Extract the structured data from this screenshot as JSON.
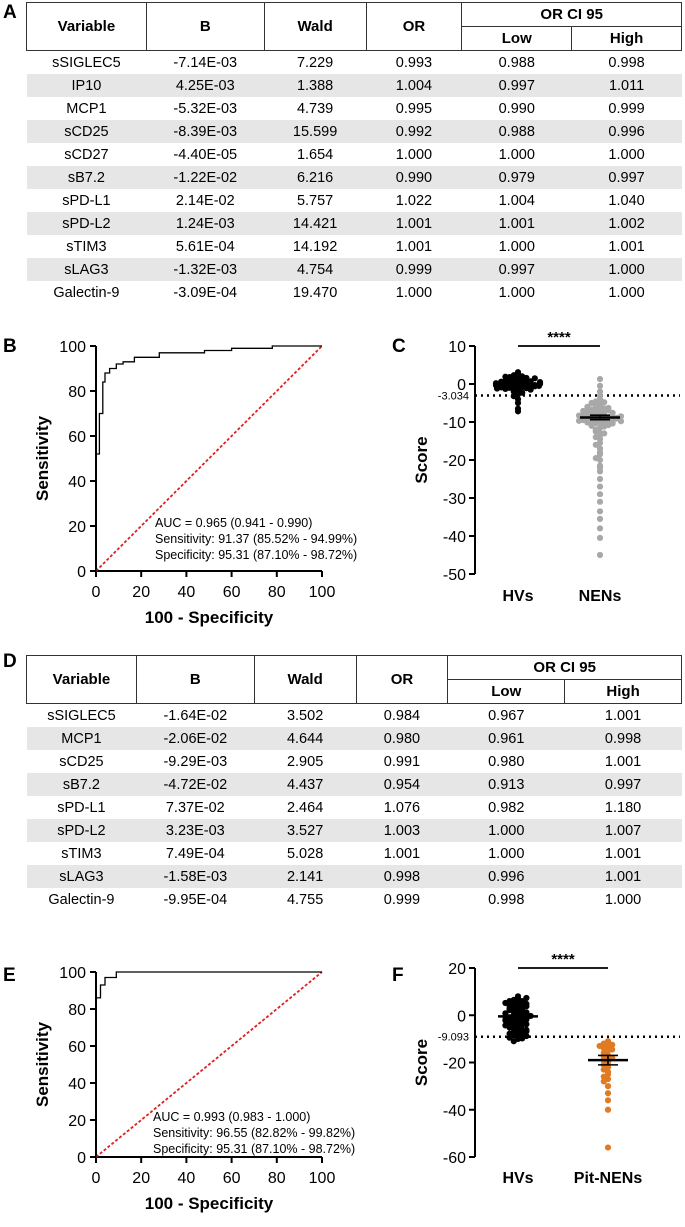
{
  "panels": {
    "a": "A",
    "b": "B",
    "c": "C",
    "d": "D",
    "e": "E",
    "f": "F"
  },
  "table_a": {
    "headers": {
      "variable": "Variable",
      "b": "B",
      "wald": "Wald",
      "or": "OR",
      "ci": "OR CI 95",
      "low": "Low",
      "high": "High"
    },
    "rows": [
      [
        "sSIGLEC5",
        "-7.14E-03",
        "7.229",
        "0.993",
        "0.988",
        "0.998"
      ],
      [
        "IP10",
        "4.25E-03",
        "1.388",
        "1.004",
        "0.997",
        "1.011"
      ],
      [
        "MCP1",
        "-5.32E-03",
        "4.739",
        "0.995",
        "0.990",
        "0.999"
      ],
      [
        "sCD25",
        "-8.39E-03",
        "15.599",
        "0.992",
        "0.988",
        "0.996"
      ],
      [
        "sCD27",
        "-4.40E-05",
        "1.654",
        "1.000",
        "1.000",
        "1.000"
      ],
      [
        "sB7.2",
        "-1.22E-02",
        "6.216",
        "0.990",
        "0.979",
        "0.997"
      ],
      [
        "sPD-L1",
        "2.14E-02",
        "5.757",
        "1.022",
        "1.004",
        "1.040"
      ],
      [
        "sPD-L2",
        "1.24E-03",
        "14.421",
        "1.001",
        "1.001",
        "1.002"
      ],
      [
        "sTIM3",
        "5.61E-04",
        "14.192",
        "1.001",
        "1.000",
        "1.001"
      ],
      [
        "sLAG3",
        "-1.32E-03",
        "4.754",
        "0.999",
        "0.997",
        "1.000"
      ],
      [
        "Galectin-9",
        "-3.09E-04",
        "19.470",
        "1.000",
        "1.000",
        "1.000"
      ]
    ]
  },
  "table_d": {
    "headers": {
      "variable": "Variable",
      "b": "B",
      "wald": "Wald",
      "or": "OR",
      "ci": "OR CI 95",
      "low": "Low",
      "high": "High"
    },
    "rows": [
      [
        "sSIGLEC5",
        "-1.64E-02",
        "3.502",
        "0.984",
        "0.967",
        "1.001"
      ],
      [
        "MCP1",
        "-2.06E-02",
        "4.644",
        "0.980",
        "0.961",
        "0.998"
      ],
      [
        "sCD25",
        "-9.29E-03",
        "2.905",
        "0.991",
        "0.980",
        "1.001"
      ],
      [
        "sB7.2",
        "-4.72E-02",
        "4.437",
        "0.954",
        "0.913",
        "0.997"
      ],
      [
        "sPD-L1",
        "7.37E-02",
        "2.464",
        "1.076",
        "0.982",
        "1.180"
      ],
      [
        "sPD-L2",
        "3.23E-03",
        "3.527",
        "1.003",
        "1.000",
        "1.007"
      ],
      [
        "sTIM3",
        "7.49E-04",
        "5.028",
        "1.001",
        "1.000",
        "1.001"
      ],
      [
        "sLAG3",
        "-1.58E-03",
        "2.141",
        "0.998",
        "0.996",
        "1.001"
      ],
      [
        "Galectin-9",
        "-9.95E-04",
        "4.755",
        "0.999",
        "0.998",
        "1.000"
      ]
    ]
  },
  "chart_data": [
    {
      "id": "B",
      "type": "line",
      "xlabel": "100 - Specificity",
      "ylabel": "Sensitivity",
      "xlim": [
        0,
        100
      ],
      "ylim": [
        0,
        100
      ],
      "xticks": [
        0,
        20,
        40,
        60,
        80,
        100
      ],
      "yticks": [
        0,
        20,
        40,
        60,
        80,
        100
      ],
      "roc": [
        [
          0,
          0
        ],
        [
          0,
          52
        ],
        [
          1.5,
          52
        ],
        [
          1.5,
          70
        ],
        [
          3,
          70
        ],
        [
          3,
          84
        ],
        [
          4,
          84
        ],
        [
          4,
          88
        ],
        [
          6,
          88
        ],
        [
          6,
          90
        ],
        [
          9,
          90
        ],
        [
          9,
          92
        ],
        [
          12,
          92
        ],
        [
          12,
          93
        ],
        [
          17,
          93
        ],
        [
          17,
          95
        ],
        [
          28,
          95
        ],
        [
          28,
          97
        ],
        [
          48,
          97
        ],
        [
          48,
          98
        ],
        [
          60,
          98
        ],
        [
          60,
          99
        ],
        [
          78,
          99
        ],
        [
          78,
          100
        ],
        [
          100,
          100
        ]
      ],
      "reference_line": [
        [
          0,
          0
        ],
        [
          100,
          100
        ]
      ],
      "annotations": [
        "AUC = 0.965 (0.941 - 0.990)",
        "Sensitivity: 91.37 (85.52% - 94.99%)",
        "Specificity: 95.31 (87.10% - 98.72%)"
      ]
    },
    {
      "id": "C",
      "type": "scatter",
      "ylabel": "Score",
      "categories": [
        "HVs",
        "NENs"
      ],
      "ylim": [
        -50,
        10
      ],
      "yticks": [
        10,
        0,
        -10,
        -20,
        -30,
        -40,
        -50
      ],
      "cutoff": -3.034,
      "cutoff_label": "-3.034",
      "significance": "****",
      "series": [
        {
          "name": "HVs",
          "color": "#000000",
          "mean": 0.0,
          "sem": 0.4,
          "values": [
            3.1,
            2.6,
            2.3,
            2.0,
            1.8,
            1.6,
            1.4,
            1.2,
            1.1,
            1.0,
            0.9,
            0.8,
            0.7,
            0.6,
            0.5,
            0.4,
            0.3,
            0.2,
            0.1,
            0.0,
            -0.1,
            -0.2,
            -0.3,
            -0.4,
            -0.5,
            -0.6,
            -0.7,
            -0.8,
            -1.0,
            -1.1,
            -1.3,
            -1.5,
            -1.7,
            -2.0,
            -2.3,
            -2.7,
            -3.2,
            -4.0,
            -5.0,
            -6.5,
            -7.2,
            0.2,
            0.5,
            -0.3,
            1.5,
            -0.9,
            0.0,
            -0.6,
            1.9,
            -1.2
          ]
        },
        {
          "name": "NENs",
          "color": "#a8a8a8",
          "mean": -8.8,
          "sem": 0.6,
          "values": [
            1.3,
            -0.5,
            -2.0,
            -3.1,
            -4.0,
            -4.6,
            -5.2,
            -5.8,
            -6.1,
            -6.4,
            -6.7,
            -7.0,
            -7.2,
            -7.5,
            -7.7,
            -8.0,
            -8.2,
            -8.4,
            -8.6,
            -8.8,
            -9.0,
            -9.2,
            -9.4,
            -9.6,
            -9.8,
            -10.0,
            -10.3,
            -10.6,
            -11.0,
            -11.5,
            -12.0,
            -12.8,
            -13.5,
            -14.5,
            -15.5,
            -17.0,
            -18.5,
            -20.0,
            -21.5,
            -23.0,
            -25.0,
            -27.0,
            -29.0,
            -31.0,
            -33.5,
            -35.5,
            -38.0,
            -40.5,
            -45.0,
            -5.5,
            -6.9,
            -7.9,
            -8.7,
            -9.3,
            -9.9,
            -10.8,
            -6.3,
            -7.4,
            -8.1,
            -8.9,
            -9.5,
            -10.1,
            -11.2,
            -4.8,
            -12.5,
            -16.0,
            -13.0,
            -7.6,
            -8.3,
            -9.1,
            -9.7,
            -5.0,
            -6.0,
            -7.1,
            -8.5,
            -9.8,
            -10.4,
            -14.0,
            -18.0,
            -22.0,
            -19.5
          ]
        }
      ]
    },
    {
      "id": "E",
      "type": "line",
      "xlabel": "100 - Specificity",
      "ylabel": "Sensitivity",
      "xlim": [
        0,
        100
      ],
      "ylim": [
        0,
        100
      ],
      "xticks": [
        0,
        20,
        40,
        60,
        80,
        100
      ],
      "yticks": [
        0,
        20,
        40,
        60,
        80,
        100
      ],
      "roc": [
        [
          0,
          0
        ],
        [
          0,
          86
        ],
        [
          2,
          86
        ],
        [
          2,
          93
        ],
        [
          4,
          93
        ],
        [
          4,
          97
        ],
        [
          9,
          97
        ],
        [
          9,
          100
        ],
        [
          100,
          100
        ]
      ],
      "reference_line": [
        [
          0,
          0
        ],
        [
          100,
          100
        ]
      ],
      "annotations": [
        "AUC = 0.993 (0.983 - 1.000)",
        "Sensitivity: 96.55 (82.82% - 99.82%)",
        "Specificity: 95.31 (87.10% - 98.72%)"
      ]
    },
    {
      "id": "F",
      "type": "scatter",
      "ylabel": "Score",
      "categories": [
        "HVs",
        "Pit-NENs"
      ],
      "ylim": [
        -60,
        20
      ],
      "yticks": [
        20,
        0,
        -20,
        -40,
        -60
      ],
      "cutoff": -9.093,
      "cutoff_label": "-9.093",
      "significance": "****",
      "series": [
        {
          "name": "HVs",
          "color": "#000000",
          "mean": -0.5,
          "sem": 0.6,
          "values": [
            8,
            7,
            6.5,
            6,
            5.5,
            5,
            4.5,
            4,
            3.5,
            3,
            2.5,
            2,
            1.5,
            1,
            0.5,
            0,
            -0.5,
            -1,
            -1.5,
            -2,
            -2.5,
            -3,
            -3.5,
            -4,
            -4.5,
            -5,
            -5.5,
            -6,
            -6.5,
            -7,
            -7.5,
            -8,
            -8.5,
            -9,
            -9.5,
            -10,
            -11,
            6,
            3,
            0.2,
            -2.8,
            -5.2,
            -7.8,
            2.2,
            -0.8,
            -3.8,
            -6.2,
            4.8,
            1.2,
            -1.8,
            -4.3,
            -6.8,
            5.2,
            0.8,
            -2.2,
            -8.8,
            7.3,
            -9.8,
            3.8,
            -0.3
          ]
        },
        {
          "name": "Pit-NENs",
          "color": "#e07b23",
          "mean": -19.0,
          "sem": 2.0,
          "values": [
            -11,
            -11.5,
            -12,
            -12.5,
            -13,
            -13.5,
            -14,
            -14.5,
            -15,
            -16,
            -17,
            -17.5,
            -18,
            -18.5,
            -19,
            -20,
            -21,
            -22,
            -23,
            -24,
            -25,
            -26,
            -27,
            -28,
            -30,
            -33,
            -36,
            -40,
            -56
          ]
        }
      ]
    }
  ]
}
